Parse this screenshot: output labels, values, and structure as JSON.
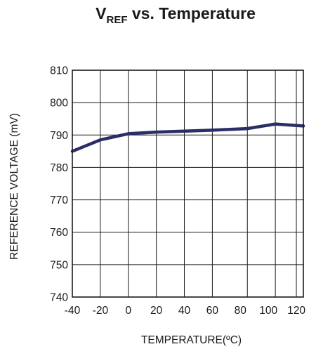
{
  "chart_data": {
    "type": "line",
    "title": {
      "main": "V",
      "subscript": "REF",
      "rest": " vs. Temperature"
    },
    "xlabel": "TEMPERATURE(ºC)",
    "ylabel": "REFERENCE VOLTAGE (mV)",
    "xlim": [
      -40,
      125
    ],
    "ylim": [
      740,
      810
    ],
    "xticks": [
      -40,
      -20,
      0,
      20,
      40,
      60,
      80,
      100,
      120
    ],
    "yticks": [
      740,
      750,
      760,
      770,
      780,
      790,
      800,
      810
    ],
    "x_grid_lines": [
      -40,
      -20,
      0,
      20,
      40,
      60,
      85,
      105,
      120,
      125
    ],
    "grid": true,
    "series": [
      {
        "color": "#2b2d66",
        "x": [
          -40,
          -20,
          0,
          20,
          40,
          60,
          85,
          105,
          125
        ],
        "y": [
          785.0,
          788.5,
          790.4,
          790.9,
          791.2,
          791.5,
          792.0,
          793.4,
          792.8
        ]
      }
    ]
  }
}
